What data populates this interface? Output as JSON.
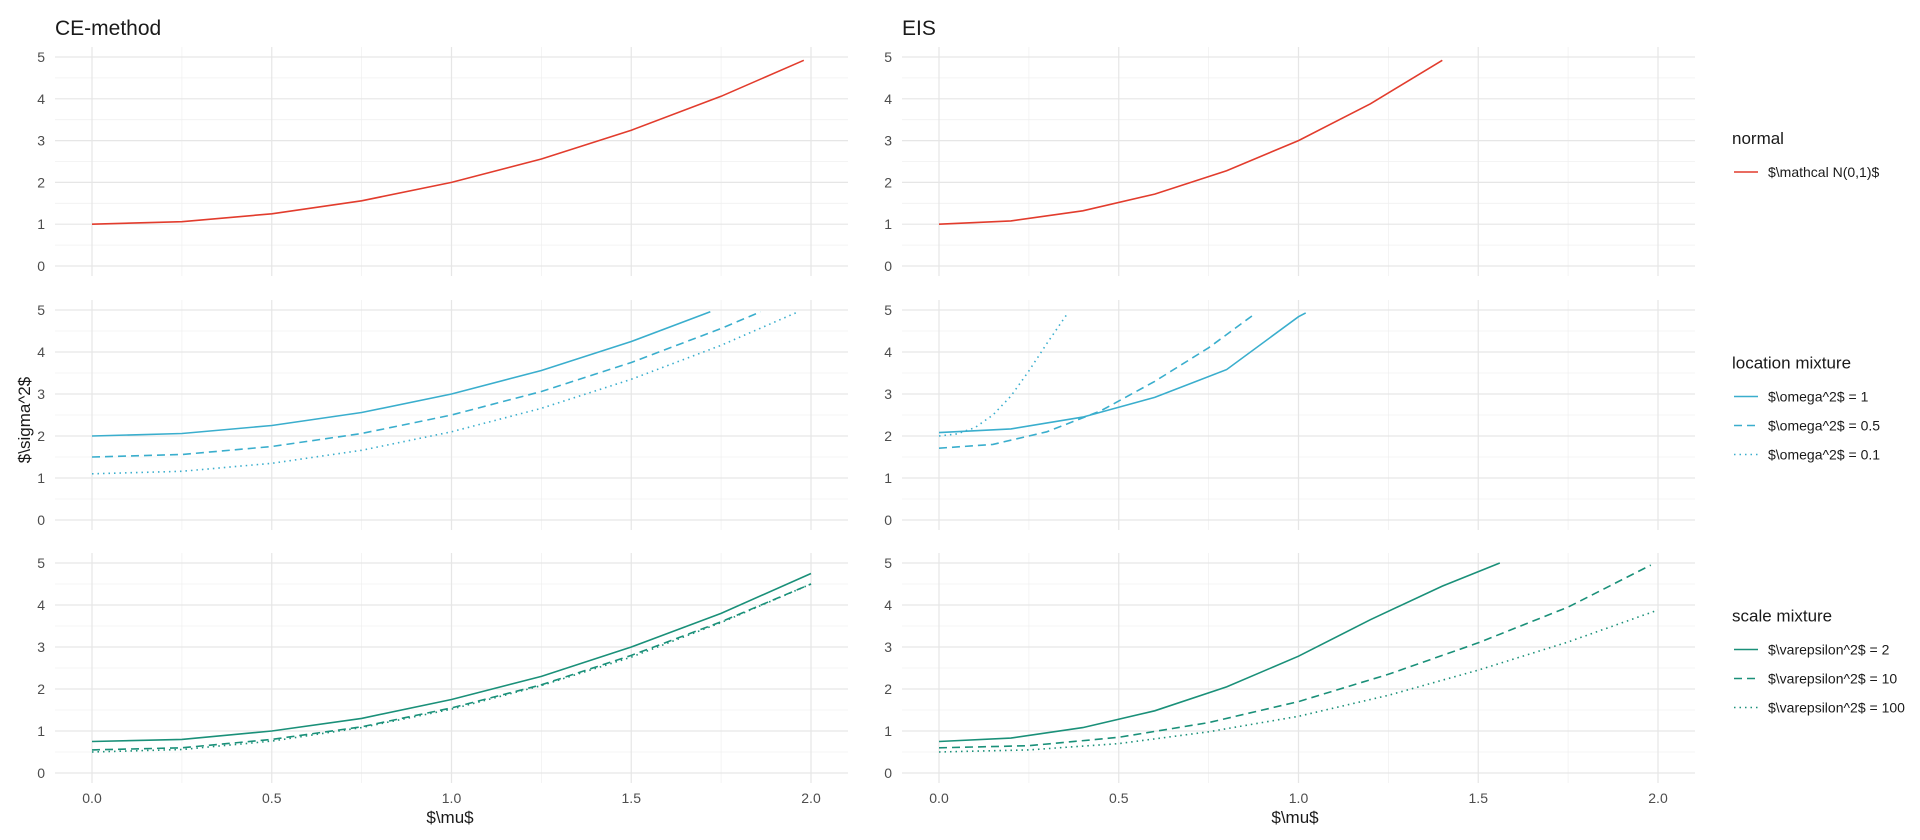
{
  "chart_data": {
    "type": "line",
    "xlabel": "$\\mu$",
    "ylabel": "$\\sigma^2$",
    "xlim": [
      0,
      2.0
    ],
    "ylim": [
      0,
      5
    ],
    "x_ticks": [
      "0.0",
      "0.5",
      "1.0",
      "1.5",
      "2.0"
    ],
    "y_ticks": [
      "0",
      "1",
      "2",
      "3",
      "4",
      "5"
    ],
    "grid": true,
    "columns": [
      "CE-method",
      "EIS"
    ],
    "colors": {
      "normal": "#e23c2d",
      "location": "#3aaecd",
      "scale": "#1a9079"
    },
    "rows": [
      {
        "legend_title": "normal",
        "color": "normal",
        "series": [
          {
            "name": "$\\mathcal N(0,1)$",
            "dash": "solid",
            "ce": {
              "x": [
                0.0,
                0.25,
                0.5,
                0.75,
                1.0,
                1.25,
                1.5,
                1.75,
                1.98
              ],
              "y": [
                1.0,
                1.06,
                1.25,
                1.56,
                2.0,
                2.56,
                3.25,
                4.06,
                4.92
              ]
            },
            "eis": {
              "x": [
                0.0,
                0.2,
                0.4,
                0.6,
                0.8,
                1.0,
                1.2,
                1.4
              ],
              "y": [
                1.0,
                1.08,
                1.32,
                1.72,
                2.28,
                3.0,
                3.88,
                4.92
              ]
            }
          }
        ]
      },
      {
        "legend_title": "location mixture",
        "color": "location",
        "series": [
          {
            "name": "$\\omega^2$ = 1",
            "dash": "solid",
            "ce": {
              "x": [
                0.0,
                0.25,
                0.5,
                0.75,
                1.0,
                1.25,
                1.5,
                1.72
              ],
              "y": [
                2.0,
                2.06,
                2.25,
                2.56,
                3.0,
                3.56,
                4.25,
                4.96
              ]
            },
            "eis": {
              "x": [
                0.0,
                0.2,
                0.4,
                0.6,
                0.8,
                1.0,
                1.02
              ],
              "y": [
                2.08,
                2.17,
                2.45,
                2.92,
                3.58,
                4.84,
                4.93
              ]
            }
          },
          {
            "name": "$\\omega^2$ = 0.5",
            "dash": "dashed",
            "ce": {
              "x": [
                0.0,
                0.25,
                0.5,
                0.75,
                1.0,
                1.25,
                1.5,
                1.75,
                1.86
              ],
              "y": [
                1.5,
                1.56,
                1.75,
                2.06,
                2.5,
                3.06,
                3.75,
                4.56,
                4.96
              ]
            },
            "eis": {
              "x": [
                0.0,
                0.15,
                0.3,
                0.45,
                0.6,
                0.75,
                0.88
              ],
              "y": [
                1.71,
                1.8,
                2.1,
                2.6,
                3.3,
                4.1,
                4.92
              ]
            }
          },
          {
            "name": "$\\omega^2$ = 0.1",
            "dash": "dotted",
            "ce": {
              "x": [
                0.0,
                0.25,
                0.5,
                0.75,
                1.0,
                1.25,
                1.5,
                1.75,
                1.96
              ],
              "y": [
                1.1,
                1.16,
                1.35,
                1.66,
                2.1,
                2.66,
                3.35,
                4.16,
                4.94
              ]
            },
            "eis": {
              "x": [
                0.0,
                0.05,
                0.1,
                0.15,
                0.2,
                0.25,
                0.3,
                0.36
              ],
              "y": [
                2.0,
                2.05,
                2.2,
                2.5,
                2.95,
                3.55,
                4.2,
                4.95
              ]
            }
          }
        ]
      },
      {
        "legend_title": "scale mixture",
        "color": "scale",
        "series": [
          {
            "name": "$\\varepsilon^2$ = 2",
            "dash": "solid",
            "ce": {
              "x": [
                0.0,
                0.25,
                0.5,
                0.75,
                1.0,
                1.25,
                1.5,
                1.75,
                2.0
              ],
              "y": [
                0.75,
                0.8,
                1.0,
                1.3,
                1.75,
                2.3,
                3.0,
                3.8,
                4.75
              ]
            },
            "eis": {
              "x": [
                0.0,
                0.2,
                0.4,
                0.6,
                0.8,
                1.0,
                1.2,
                1.4,
                1.56
              ],
              "y": [
                0.75,
                0.83,
                1.08,
                1.48,
                2.05,
                2.78,
                3.65,
                4.45,
                5.0
              ]
            }
          },
          {
            "name": "$\\varepsilon^2$ = 10",
            "dash": "dashed",
            "ce": {
              "x": [
                0.0,
                0.25,
                0.5,
                0.75,
                1.0,
                1.25,
                1.5,
                1.75,
                2.0
              ],
              "y": [
                0.55,
                0.6,
                0.8,
                1.1,
                1.55,
                2.1,
                2.8,
                3.6,
                4.5
              ]
            },
            "eis": {
              "x": [
                0.0,
                0.25,
                0.5,
                0.75,
                1.0,
                1.25,
                1.5,
                1.75,
                1.98
              ],
              "y": [
                0.6,
                0.65,
                0.85,
                1.2,
                1.7,
                2.35,
                3.1,
                3.95,
                4.95
              ]
            }
          },
          {
            "name": "$\\varepsilon^2$ = 100",
            "dash": "dotted",
            "ce": {
              "x": [
                0.0,
                0.25,
                0.5,
                0.75,
                1.0,
                1.25,
                1.5,
                1.75,
                2.0
              ],
              "y": [
                0.5,
                0.56,
                0.76,
                1.08,
                1.52,
                2.08,
                2.76,
                3.58,
                4.5
              ]
            },
            "eis": {
              "x": [
                0.0,
                0.25,
                0.5,
                0.75,
                1.0,
                1.25,
                1.5,
                1.75,
                2.0
              ],
              "y": [
                0.5,
                0.55,
                0.7,
                0.98,
                1.35,
                1.85,
                2.45,
                3.12,
                3.88
              ]
            }
          }
        ]
      }
    ]
  }
}
